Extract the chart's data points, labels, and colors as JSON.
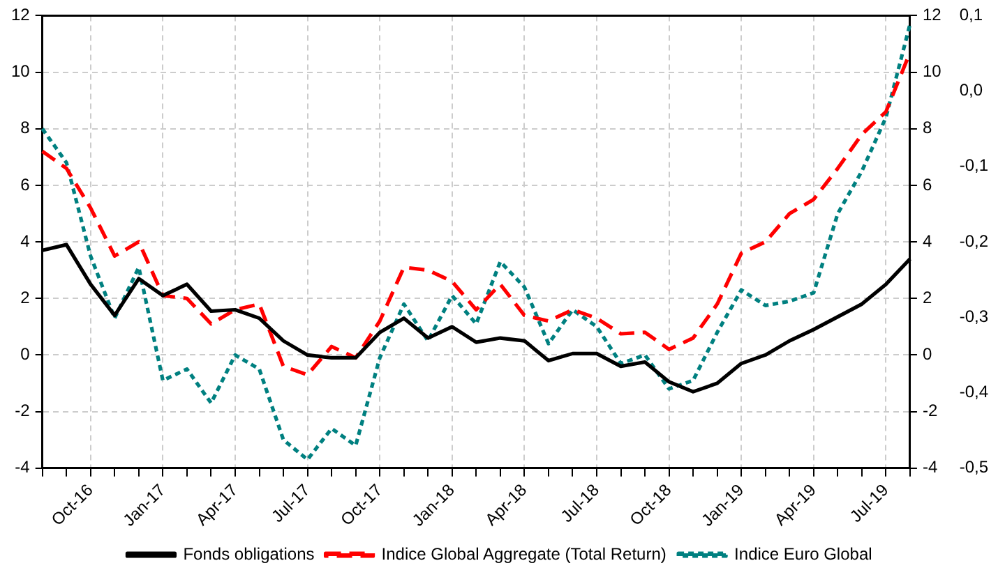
{
  "chart_data": {
    "type": "line",
    "categories": [
      null,
      null,
      "Oct-16",
      null,
      null,
      "Jan-17",
      null,
      null,
      "Apr-17",
      null,
      null,
      "Jul-17",
      null,
      null,
      "Oct-17",
      null,
      null,
      "Jan-18",
      null,
      null,
      "Apr-18",
      null,
      null,
      "Jul-18",
      null,
      null,
      "Oct-18",
      null,
      null,
      "Jan-19",
      null,
      null,
      "Apr-19",
      null,
      null,
      "Jul-19",
      null
    ],
    "series": [
      {
        "name": "Fonds obligations",
        "color": "#000000",
        "line_style": "solid",
        "values": [
          3.7,
          3.9,
          2.5,
          1.4,
          2.7,
          2.1,
          2.5,
          1.55,
          1.6,
          1.3,
          0.5,
          0.0,
          -0.1,
          -0.1,
          0.8,
          1.3,
          0.6,
          1.0,
          0.45,
          0.6,
          0.5,
          -0.2,
          0.05,
          0.05,
          -0.4,
          -0.25,
          -0.95,
          -1.3,
          -1.0,
          -0.3,
          0.0,
          0.5,
          0.9,
          1.35,
          1.8,
          2.5,
          3.4
        ]
      },
      {
        "name": "Indice Global Aggregate (Total Return)",
        "color": "#ff0000",
        "line_style": "dashed",
        "values": [
          7.2,
          6.6,
          5.2,
          3.5,
          4.0,
          2.1,
          2.0,
          1.1,
          1.6,
          1.8,
          -0.4,
          -0.7,
          0.3,
          -0.1,
          1.2,
          3.1,
          3.0,
          2.6,
          1.6,
          2.5,
          1.4,
          1.2,
          1.6,
          1.3,
          0.75,
          0.8,
          0.2,
          0.6,
          1.8,
          3.6,
          4.0,
          5.0,
          5.5,
          6.6,
          7.8,
          8.6,
          10.7
        ]
      },
      {
        "name": "Indice Euro Global",
        "color": "#008080",
        "line_style": "dotted",
        "values": [
          8.0,
          6.8,
          3.5,
          1.3,
          3.1,
          -0.9,
          -0.5,
          -1.7,
          0.0,
          -0.5,
          -3.0,
          -3.7,
          -2.6,
          -3.2,
          -0.1,
          1.8,
          0.5,
          2.1,
          1.1,
          3.3,
          2.4,
          0.4,
          1.6,
          1.0,
          -0.3,
          0.0,
          -1.2,
          -0.9,
          0.8,
          2.3,
          1.75,
          1.9,
          2.2,
          5.0,
          6.5,
          8.4,
          11.7
        ]
      }
    ],
    "ylim": [
      -4,
      12
    ],
    "yticks": [
      -4,
      -2,
      0,
      2,
      4,
      6,
      8,
      10,
      12
    ],
    "y2lim": [
      -4,
      12
    ],
    "y2ticks": [
      -4,
      -2,
      0,
      2,
      4,
      6,
      8,
      10,
      12
    ],
    "y3lim": [
      -0.5,
      0.1
    ],
    "y3ticks": [
      {
        "value": -0.5,
        "label": "-0,5"
      },
      {
        "value": -0.4,
        "label": "-0,4"
      },
      {
        "value": -0.3,
        "label": "-0,3"
      },
      {
        "value": -0.2,
        "label": "-0,2"
      },
      {
        "value": -0.1,
        "label": "-0,1"
      },
      {
        "value": 0.0,
        "label": "0,0"
      },
      {
        "value": 0.1,
        "label": "0,1"
      }
    ],
    "grid": true,
    "legend": "bottom"
  }
}
